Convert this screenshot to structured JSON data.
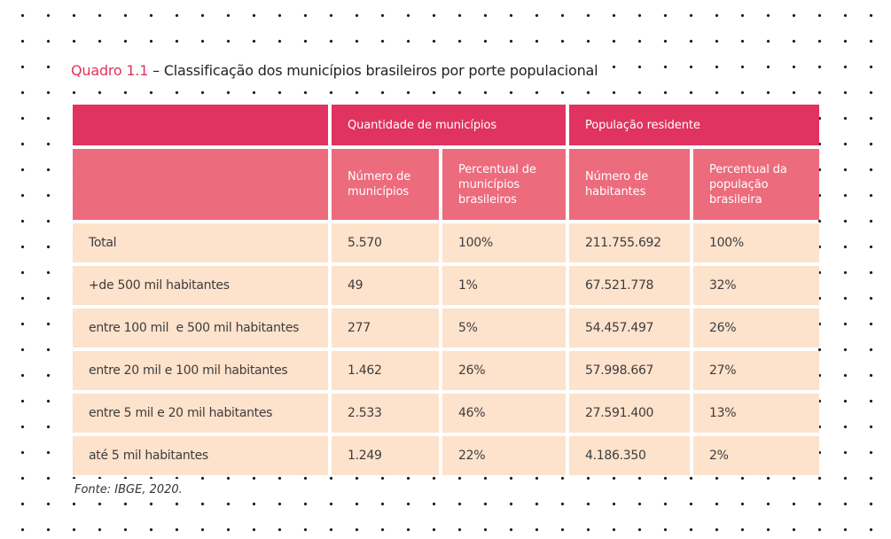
{
  "title": {
    "prefix": "Quadro 1.1",
    "separator": " – ",
    "text": "Classificação dos municípios brasileiros por porte populacional"
  },
  "table": {
    "group_headers": [
      "Quantidade de municípios",
      "População residente"
    ],
    "sub_headers": [
      "Número de municípios",
      "Percentual de municípios brasileiros",
      "Número de habitantes",
      "Percentual da população brasileira"
    ],
    "rows": [
      [
        "Total",
        "5.570",
        "100%",
        "211.755.692",
        "100%"
      ],
      [
        "+de 500 mil habitantes",
        "49",
        "1%",
        "67.521.778",
        "32%"
      ],
      [
        "entre 100 mil  e 500 mil habitantes",
        "277",
        "5%",
        "54.457.497",
        "26%"
      ],
      [
        "entre 20 mil e 100 mil habitantes",
        "1.462",
        "26%",
        "57.998.667",
        "27%"
      ],
      [
        "entre 5 mil e 20 mil habitantes",
        "2.533",
        "46%",
        "27.591.400",
        "13%"
      ],
      [
        "até 5 mil habitantes",
        "1.249",
        "22%",
        "4.186.350",
        "2%"
      ]
    ]
  },
  "source": "Fonte: IBGE, 2020.",
  "colors": {
    "accent": "#e0335f",
    "subheader": "#ec6b7d",
    "row_fill": "#fde2cc"
  }
}
